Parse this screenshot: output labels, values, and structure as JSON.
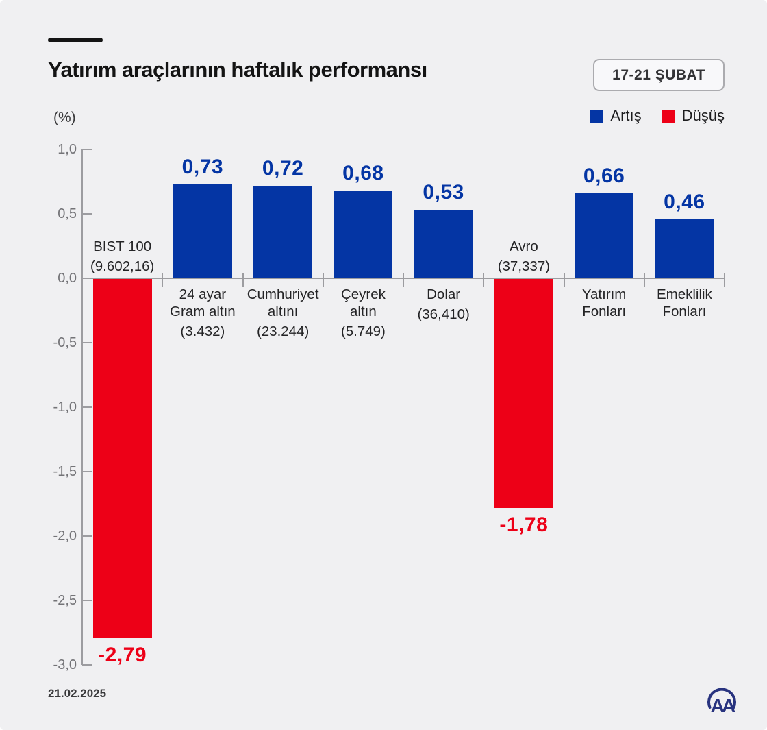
{
  "header": {
    "title": "Yatırım araçlarının haftalık performansı",
    "badge": "17-21 ŞUBAT"
  },
  "legend": [
    {
      "label": "Artış",
      "color": "#0435a4"
    },
    {
      "label": "Düşüş",
      "color": "#ed0017"
    }
  ],
  "footer": {
    "date": "21.02.2025",
    "logo": "AA"
  },
  "chart_data": {
    "type": "bar",
    "title": "Yatırım araçlarının haftalık performansı",
    "subtitle": "17-21 ŞUBAT",
    "ylabel": "(%)",
    "ylim": [
      -3.0,
      1.0
    ],
    "grid": false,
    "legend_position": "top-right",
    "legend": [
      "Artış",
      "Düşüş"
    ],
    "colors": {
      "positive": "#0435a4",
      "negative": "#ed0017"
    },
    "yticks": [
      {
        "value": 1.0,
        "label": "1,0"
      },
      {
        "value": 0.5,
        "label": "0,5"
      },
      {
        "value": 0.0,
        "label": "0,0"
      },
      {
        "value": -0.5,
        "label": "-0,5"
      },
      {
        "value": -1.0,
        "label": "-1,0"
      },
      {
        "value": -1.5,
        "label": "-1,5"
      },
      {
        "value": -2.0,
        "label": "-2,0"
      },
      {
        "value": -2.5,
        "label": "-2,5"
      },
      {
        "value": -3.0,
        "label": "-3,0"
      }
    ],
    "bars": [
      {
        "label_lines": [
          "BIST 100"
        ],
        "detail": "(9.602,16)",
        "value": -2.79,
        "value_label": "-2,79"
      },
      {
        "label_lines": [
          "24 ayar",
          "Gram altın"
        ],
        "detail": "(3.432)",
        "value": 0.73,
        "value_label": "0,73"
      },
      {
        "label_lines": [
          "Cumhuriyet",
          "altını"
        ],
        "detail": "(23.244)",
        "value": 0.72,
        "value_label": "0,72"
      },
      {
        "label_lines": [
          "Çeyrek",
          "altın"
        ],
        "detail": "(5.749)",
        "value": 0.68,
        "value_label": "0,68"
      },
      {
        "label_lines": [
          "Dolar"
        ],
        "detail": "(36,410)",
        "value": 0.53,
        "value_label": "0,53"
      },
      {
        "label_lines": [
          "Avro"
        ],
        "detail": "(37,337)",
        "value": -1.78,
        "value_label": "-1,78"
      },
      {
        "label_lines": [
          "Yatırım",
          "Fonları"
        ],
        "detail": "",
        "value": 0.66,
        "value_label": "0,66"
      },
      {
        "label_lines": [
          "Emeklilik",
          "Fonları"
        ],
        "detail": "",
        "value": 0.46,
        "value_label": "0,46"
      }
    ]
  }
}
